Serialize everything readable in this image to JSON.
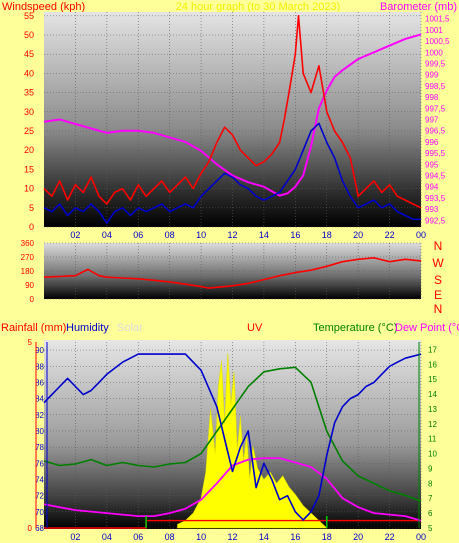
{
  "header": {
    "left": "Windspeed (kph)",
    "center": "24 hour graph (to 30 March 2023)",
    "right": "Barometer (mb)"
  },
  "compass": [
    "N",
    "W",
    "S",
    "E",
    "N"
  ],
  "bottom_header": {
    "rainfall": "Rainfall (mm)",
    "humidity": "Humidity",
    "solar": "Solar",
    "uv": "UV",
    "temperature": "Temperature (°C)",
    "dewpoint": "Dew Point (°C"
  },
  "x_ticks": [
    "02",
    "04",
    "06",
    "08",
    "10",
    "12",
    "14",
    "16",
    "18",
    "20",
    "22",
    "00"
  ],
  "colors": {
    "windspeed": "#ff0000",
    "wind_avg": "#0000cc",
    "barometer": "#ff00ff",
    "direction": "#ff0000",
    "humidity": "#0000cc",
    "temperature": "#008000",
    "dewpoint": "#ff00ff",
    "solar": "#ffff00",
    "rain": "#ff0000",
    "uv": "#ff0000"
  },
  "chart_data": [
    {
      "type": "line",
      "name": "wind-barometer",
      "x_ticks": [
        "02",
        "04",
        "06",
        "08",
        "10",
        "12",
        "14",
        "16",
        "18",
        "20",
        "22",
        "00"
      ],
      "xlim": [
        0,
        24
      ],
      "y_left_ticks": [
        "0",
        "5",
        "10",
        "15",
        "20",
        "25",
        "30",
        "35",
        "40",
        "45",
        "50",
        "55"
      ],
      "ylim_left": [
        0,
        56
      ],
      "y_right_ticks": [
        "992,5",
        "993",
        "993,5",
        "994",
        "994,5",
        "995",
        "995,5",
        "996",
        "996,5",
        "997",
        "997,5",
        "998",
        "998,5",
        "999",
        "999,5",
        "1000",
        "1000,5",
        "1001",
        "1001,5"
      ],
      "ylim_right": [
        992.2,
        1001.8
      ],
      "series": [
        {
          "x": [
            0,
            0.5,
            1,
            1.5,
            2,
            2.5,
            3,
            3.5,
            4,
            4.5,
            5,
            5.5,
            6,
            6.5,
            7,
            7.5,
            8,
            8.5,
            9,
            9.5,
            10,
            10.5,
            11,
            11.5,
            12,
            12.5,
            13,
            13.5,
            14,
            14.5,
            15,
            15.3,
            15.6,
            16,
            16.2,
            16.5,
            17,
            17.5,
            18,
            18.5,
            19,
            19.5,
            20,
            20.5,
            21,
            21.5,
            22,
            22.5,
            23,
            23.5,
            24
          ],
          "values": [
            10,
            8,
            12,
            7,
            11,
            9,
            13,
            8,
            6,
            9,
            10,
            7,
            11,
            8,
            10,
            12,
            9,
            11,
            13,
            10,
            14,
            17,
            22,
            26,
            24,
            20,
            18,
            16,
            17,
            19,
            22,
            28,
            35,
            45,
            55,
            40,
            35,
            42,
            30,
            25,
            22,
            18,
            8,
            10,
            12,
            9,
            11,
            8,
            7,
            6,
            5
          ]
        },
        {
          "x": [
            0,
            0.5,
            1,
            1.5,
            2,
            2.5,
            3,
            3.5,
            4,
            4.5,
            5,
            5.5,
            6,
            6.5,
            7,
            7.5,
            8,
            8.5,
            9,
            9.5,
            10,
            10.5,
            11,
            11.5,
            12,
            12.5,
            13,
            13.5,
            14,
            14.5,
            15,
            15.5,
            16,
            16.5,
            17,
            17.5,
            18,
            18.5,
            19,
            19.5,
            20,
            20.5,
            21,
            21.5,
            22,
            22.5,
            23,
            23.5,
            24
          ],
          "values": [
            5,
            4,
            6,
            3,
            5,
            4,
            6,
            4,
            1,
            4,
            5,
            3,
            5,
            4,
            5,
            6,
            4,
            5,
            6,
            5,
            8,
            10,
            12,
            14,
            13,
            11,
            10,
            8,
            7,
            8,
            9,
            12,
            15,
            20,
            25,
            27,
            22,
            18,
            12,
            8,
            5,
            6,
            7,
            5,
            6,
            4,
            3,
            2,
            2
          ]
        },
        {
          "x": [
            0,
            1,
            2,
            3,
            4,
            5,
            6,
            7,
            8,
            9,
            10,
            11,
            12,
            13,
            14,
            14.5,
            15,
            15.5,
            16,
            16.5,
            17,
            17.5,
            18,
            18.5,
            19,
            20,
            21,
            22,
            23,
            24
          ],
          "values": [
            996.9,
            997,
            996.8,
            996.6,
            996.4,
            996.5,
            996.5,
            996.4,
            996.2,
            996,
            995.6,
            995,
            994.5,
            994.2,
            994,
            993.8,
            993.6,
            993.7,
            994,
            994.5,
            995.8,
            997.5,
            998.3,
            998.9,
            999.2,
            999.7,
            1000,
            1000.3,
            1000.6,
            1000.8
          ]
        }
      ]
    },
    {
      "type": "line",
      "name": "wind-direction",
      "y_ticks": [
        "0",
        "90",
        "180",
        "270",
        "360"
      ],
      "ylim": [
        0,
        360
      ],
      "series": [
        {
          "x": [
            0,
            1,
            2,
            2.8,
            3.5,
            4,
            5,
            6,
            7,
            8,
            9,
            10,
            10.5,
            11,
            12,
            13,
            14,
            15,
            16,
            17,
            18,
            19,
            20,
            21,
            22,
            23,
            24
          ],
          "values": [
            140,
            145,
            150,
            190,
            150,
            140,
            135,
            130,
            120,
            110,
            95,
            80,
            70,
            75,
            85,
            100,
            125,
            150,
            170,
            185,
            210,
            240,
            255,
            265,
            240,
            255,
            245
          ]
        }
      ]
    },
    {
      "type": "line",
      "name": "humidity-temperature",
      "y_humidity_ticks": [
        "68",
        "70",
        "72",
        "74",
        "76",
        "78",
        "80",
        "82",
        "84",
        "86",
        "88",
        "90"
      ],
      "ylim_humidity": [
        68,
        91
      ],
      "y_temperature_ticks": [
        "5",
        "6",
        "7",
        "8",
        "9",
        "10",
        "11",
        "12",
        "13",
        "14",
        "15",
        "16",
        "17"
      ],
      "ylim_temperature": [
        5,
        17.5
      ],
      "y_rain_ticks": [
        "0",
        "5"
      ],
      "ylim_rain": [
        0,
        5
      ],
      "series": [
        {
          "x": [
            0,
            0.5,
            1,
            1.5,
            2,
            2.5,
            3,
            3.5,
            4,
            5,
            6,
            7,
            8,
            9,
            10,
            11,
            11.5,
            12,
            12.5,
            13,
            13.5,
            14,
            14.5,
            15,
            15.5,
            16,
            16.5,
            17,
            17.5,
            18,
            18.5,
            19,
            19.5,
            20,
            20.5,
            21,
            21.5,
            22,
            22.5,
            23,
            24
          ],
          "values": [
            83.5,
            84.5,
            85.5,
            86.5,
            85.5,
            84.5,
            85,
            86,
            87,
            88.5,
            89.5,
            89.5,
            89.5,
            89.5,
            87.5,
            83,
            79,
            75,
            78,
            80,
            73,
            76,
            74,
            71.5,
            72,
            70,
            69,
            70,
            72,
            77,
            81,
            83,
            84,
            84.5,
            85.5,
            86,
            87,
            88,
            88.5,
            89,
            89.5
          ]
        },
        {
          "x": [
            0,
            1,
            2,
            3,
            4,
            5,
            6,
            7,
            8,
            9,
            10,
            11,
            12,
            13,
            14,
            15,
            16,
            17,
            18,
            19,
            20,
            21,
            22,
            23,
            24
          ],
          "values": [
            9.5,
            9.2,
            9.3,
            9.6,
            9.2,
            9.4,
            9.2,
            9.1,
            9.3,
            9.4,
            10,
            11.5,
            13,
            14.5,
            15.5,
            15.7,
            15.8,
            14.8,
            11.5,
            9.5,
            8.5,
            8,
            7.5,
            7.2,
            6.8
          ]
        },
        {
          "x": [
            0,
            1,
            2,
            3,
            4,
            5,
            6,
            7,
            8,
            9,
            10,
            11,
            12,
            13,
            14,
            15,
            16,
            17,
            18,
            19,
            20,
            21,
            22,
            23,
            24
          ],
          "values": [
            6.6,
            6.4,
            6.2,
            6.1,
            6,
            5.9,
            5.8,
            5.8,
            6,
            6.3,
            6.9,
            8,
            9.2,
            9.6,
            9.7,
            9.7,
            9.4,
            9.1,
            8.3,
            7,
            6.4,
            6,
            5.9,
            5.8,
            5.5
          ]
        },
        {
          "x": [
            8.5,
            9,
            9.5,
            10,
            10.3,
            10.6,
            10.9,
            11.1,
            11.3,
            11.5,
            11.7,
            11.9,
            12.1,
            12.3,
            12.5,
            12.7,
            12.9,
            13.1,
            13.3,
            13.6,
            14,
            14.4,
            14.8,
            15.2,
            15.6,
            16,
            16.5,
            17,
            17.5,
            18
          ],
          "values": [
            0.1,
            0.2,
            0.4,
            0.8,
            1.5,
            3.2,
            2,
            3.8,
            4.5,
            2.8,
            4.7,
            3.3,
            4.2,
            2.1,
            3,
            1.8,
            2.5,
            1.3,
            2.2,
            1.6,
            1.3,
            1.5,
            1.2,
            1.4,
            1.1,
            0.9,
            0.6,
            0.4,
            0.2,
            0
          ]
        },
        {
          "x": [
            0,
            6.5,
            6.5,
            24
          ],
          "values": [
            0,
            0,
            0.2,
            0.2
          ]
        }
      ]
    }
  ]
}
